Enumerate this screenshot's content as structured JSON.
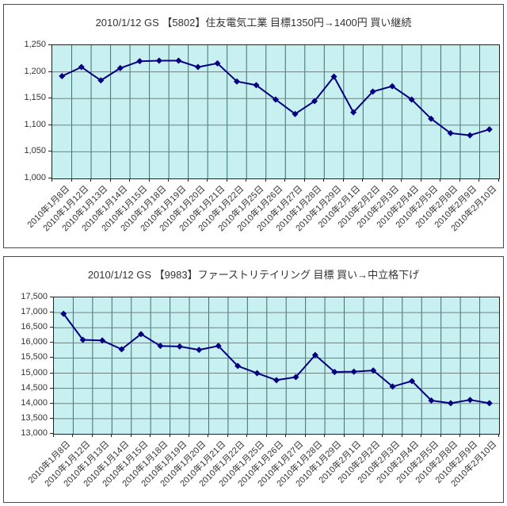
{
  "colors": {
    "page_bg": "#ffffff",
    "panel_border": "#4a4a4a",
    "plot_bg": "#c9f0f0",
    "plot_border": "#222222",
    "grid_vertical": "#3f6f6f",
    "grid_horizontal": "#6e8282",
    "series_line": "#000080",
    "marker_fill": "#000080",
    "title_text": "#333333",
    "axis_text": "#333333"
  },
  "chart_data": [
    {
      "type": "line",
      "title": "2010/1/12 GS 【5802】住友電気工業 目標1350円→1400円 買い継続",
      "categories": [
        "2010年1月8日",
        "2010年1月12日",
        "2010年1月13日",
        "2010年1月14日",
        "2010年1月15日",
        "2010年1月18日",
        "2010年1月19日",
        "2010年1月20日",
        "2010年1月21日",
        "2010年1月22日",
        "2010年1月25日",
        "2010年1月26日",
        "2010年1月27日",
        "2010年1月28日",
        "2010年1月29日",
        "2010年2月1日",
        "2010年2月2日",
        "2010年2月3日",
        "2010年2月4日",
        "2010年2月5日",
        "2010年2月8日",
        "2010年2月9日",
        "2010年2月10日"
      ],
      "values": [
        1192,
        1209,
        1184,
        1207,
        1220,
        1221,
        1221,
        1209,
        1216,
        1182,
        1175,
        1148,
        1121,
        1145,
        1191,
        1124,
        1163,
        1173,
        1148,
        1112,
        1085,
        1081,
        1092
      ],
      "ylim": [
        1000,
        1250
      ],
      "ystep": 50,
      "ytick_labels": [
        "1,250",
        "1,200",
        "1,150",
        "1,100",
        "1,050",
        "1,000"
      ],
      "xlabel": "",
      "ylabel": "",
      "grid": "on",
      "legend": "none",
      "marker": "diamond"
    },
    {
      "type": "line",
      "title": "2010/1/12 GS 【9983】ファーストリテイリング 目標 買い→中立格下げ",
      "categories": [
        "2010年1月8日",
        "2010年1月12日",
        "2010年1月13日",
        "2010年1月14日",
        "2010年1月15日",
        "2010年1月18日",
        "2010年1月19日",
        "2010年1月20日",
        "2010年1月21日",
        "2010年1月22日",
        "2010年1月25日",
        "2010年1月26日",
        "2010年1月27日",
        "2010年1月28日",
        "2010年1月29日",
        "2010年2月1日",
        "2010年2月2日",
        "2010年2月3日",
        "2010年2月4日",
        "2010年2月5日",
        "2010年2月8日",
        "2010年2月9日",
        "2010年2月10日"
      ],
      "values": [
        16960,
        16100,
        16080,
        15790,
        16290,
        15900,
        15880,
        15770,
        15900,
        15240,
        15000,
        14770,
        14870,
        15600,
        15040,
        15050,
        15090,
        14560,
        14740,
        14100,
        14010,
        14120,
        14010
      ],
      "ylim": [
        13000,
        17500
      ],
      "ystep": 500,
      "ytick_labels": [
        "17,500",
        "17,000",
        "16,500",
        "16,000",
        "15,500",
        "15,000",
        "14,500",
        "14,000",
        "13,500",
        "13,000"
      ],
      "xlabel": "",
      "ylabel": "",
      "grid": "on",
      "legend": "none",
      "marker": "diamond"
    }
  ]
}
